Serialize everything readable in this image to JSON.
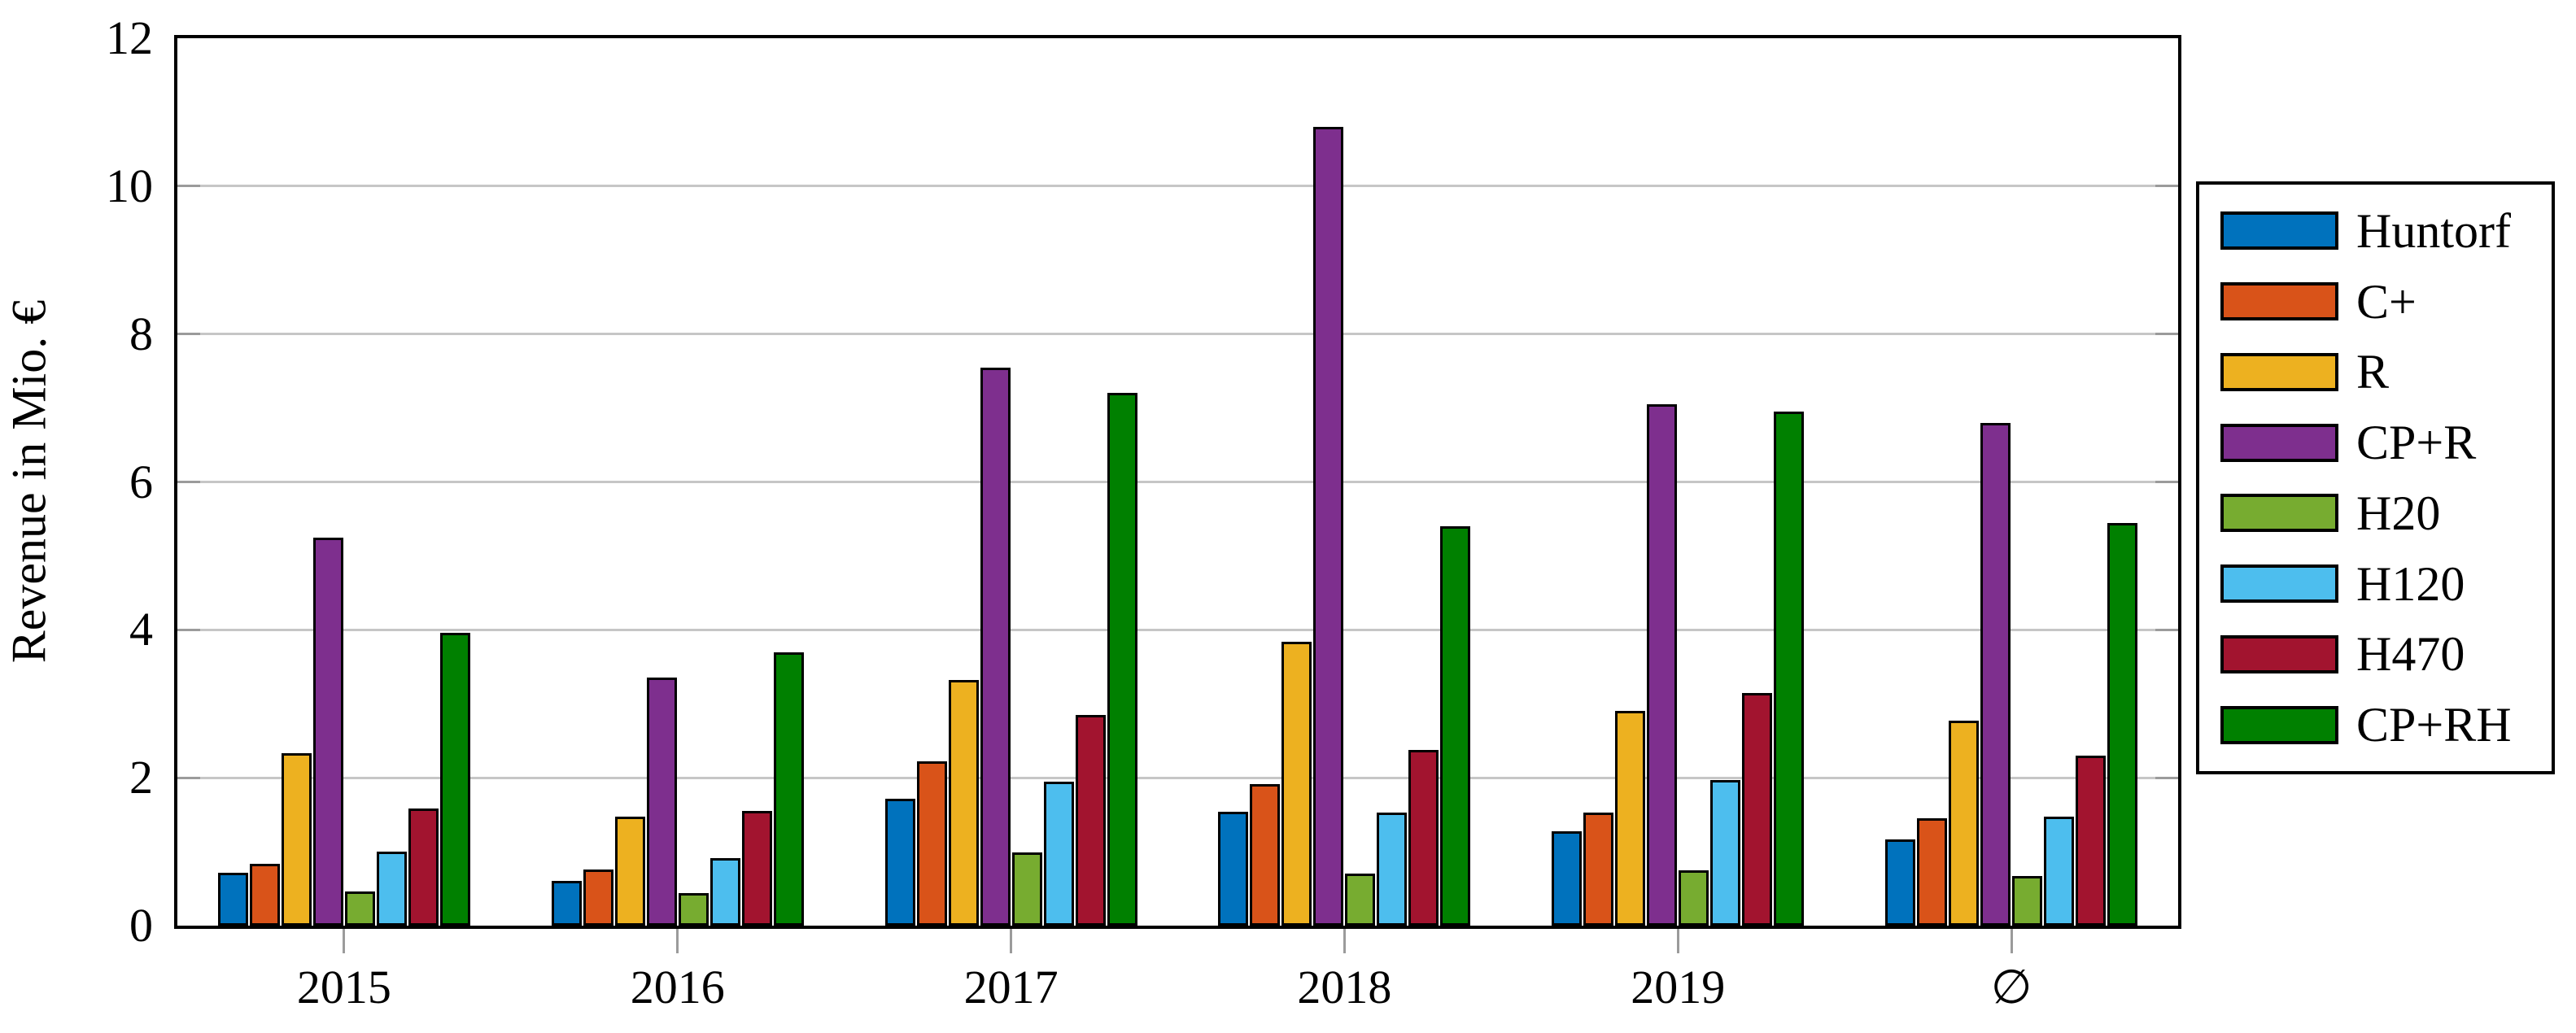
{
  "chart_data": {
    "type": "bar",
    "title": "",
    "ylabel": "Revenue in Mio. €",
    "xlabel": "",
    "ylim": [
      0,
      12
    ],
    "yticks": [
      0,
      2,
      4,
      6,
      8,
      10,
      12
    ],
    "gridlines": [
      2,
      4,
      6,
      8,
      10
    ],
    "grid": "horizontal",
    "legend_position": "right",
    "categories": [
      "2015",
      "2016",
      "2017",
      "2018",
      "2019",
      "∅"
    ],
    "series": [
      {
        "name": "Huntorf",
        "color": "#0072BD",
        "values": [
          0.71,
          0.6,
          1.72,
          1.54,
          1.28,
          1.17
        ]
      },
      {
        "name": "C+",
        "color": "#D95319",
        "values": [
          0.84,
          0.76,
          2.22,
          1.91,
          1.53,
          1.45
        ]
      },
      {
        "name": "R",
        "color": "#EDB120",
        "values": [
          2.33,
          1.47,
          3.32,
          3.84,
          2.9,
          2.77
        ]
      },
      {
        "name": "CP+R",
        "color": "#7E2F8E",
        "values": [
          5.25,
          3.35,
          7.54,
          10.8,
          7.05,
          6.8
        ]
      },
      {
        "name": "H20",
        "color": "#77AC30",
        "values": [
          0.46,
          0.44,
          0.99,
          0.7,
          0.75,
          0.67
        ]
      },
      {
        "name": "H120",
        "color": "#4DBEEE",
        "values": [
          1.0,
          0.91,
          1.95,
          1.53,
          1.97,
          1.47
        ]
      },
      {
        "name": "H470",
        "color": "#A2142F",
        "values": [
          1.58,
          1.55,
          2.85,
          2.38,
          3.15,
          2.3
        ]
      },
      {
        "name": "CP+RH",
        "color": "#008000",
        "values": [
          3.96,
          3.7,
          7.2,
          5.4,
          6.95,
          5.44
        ]
      }
    ]
  }
}
